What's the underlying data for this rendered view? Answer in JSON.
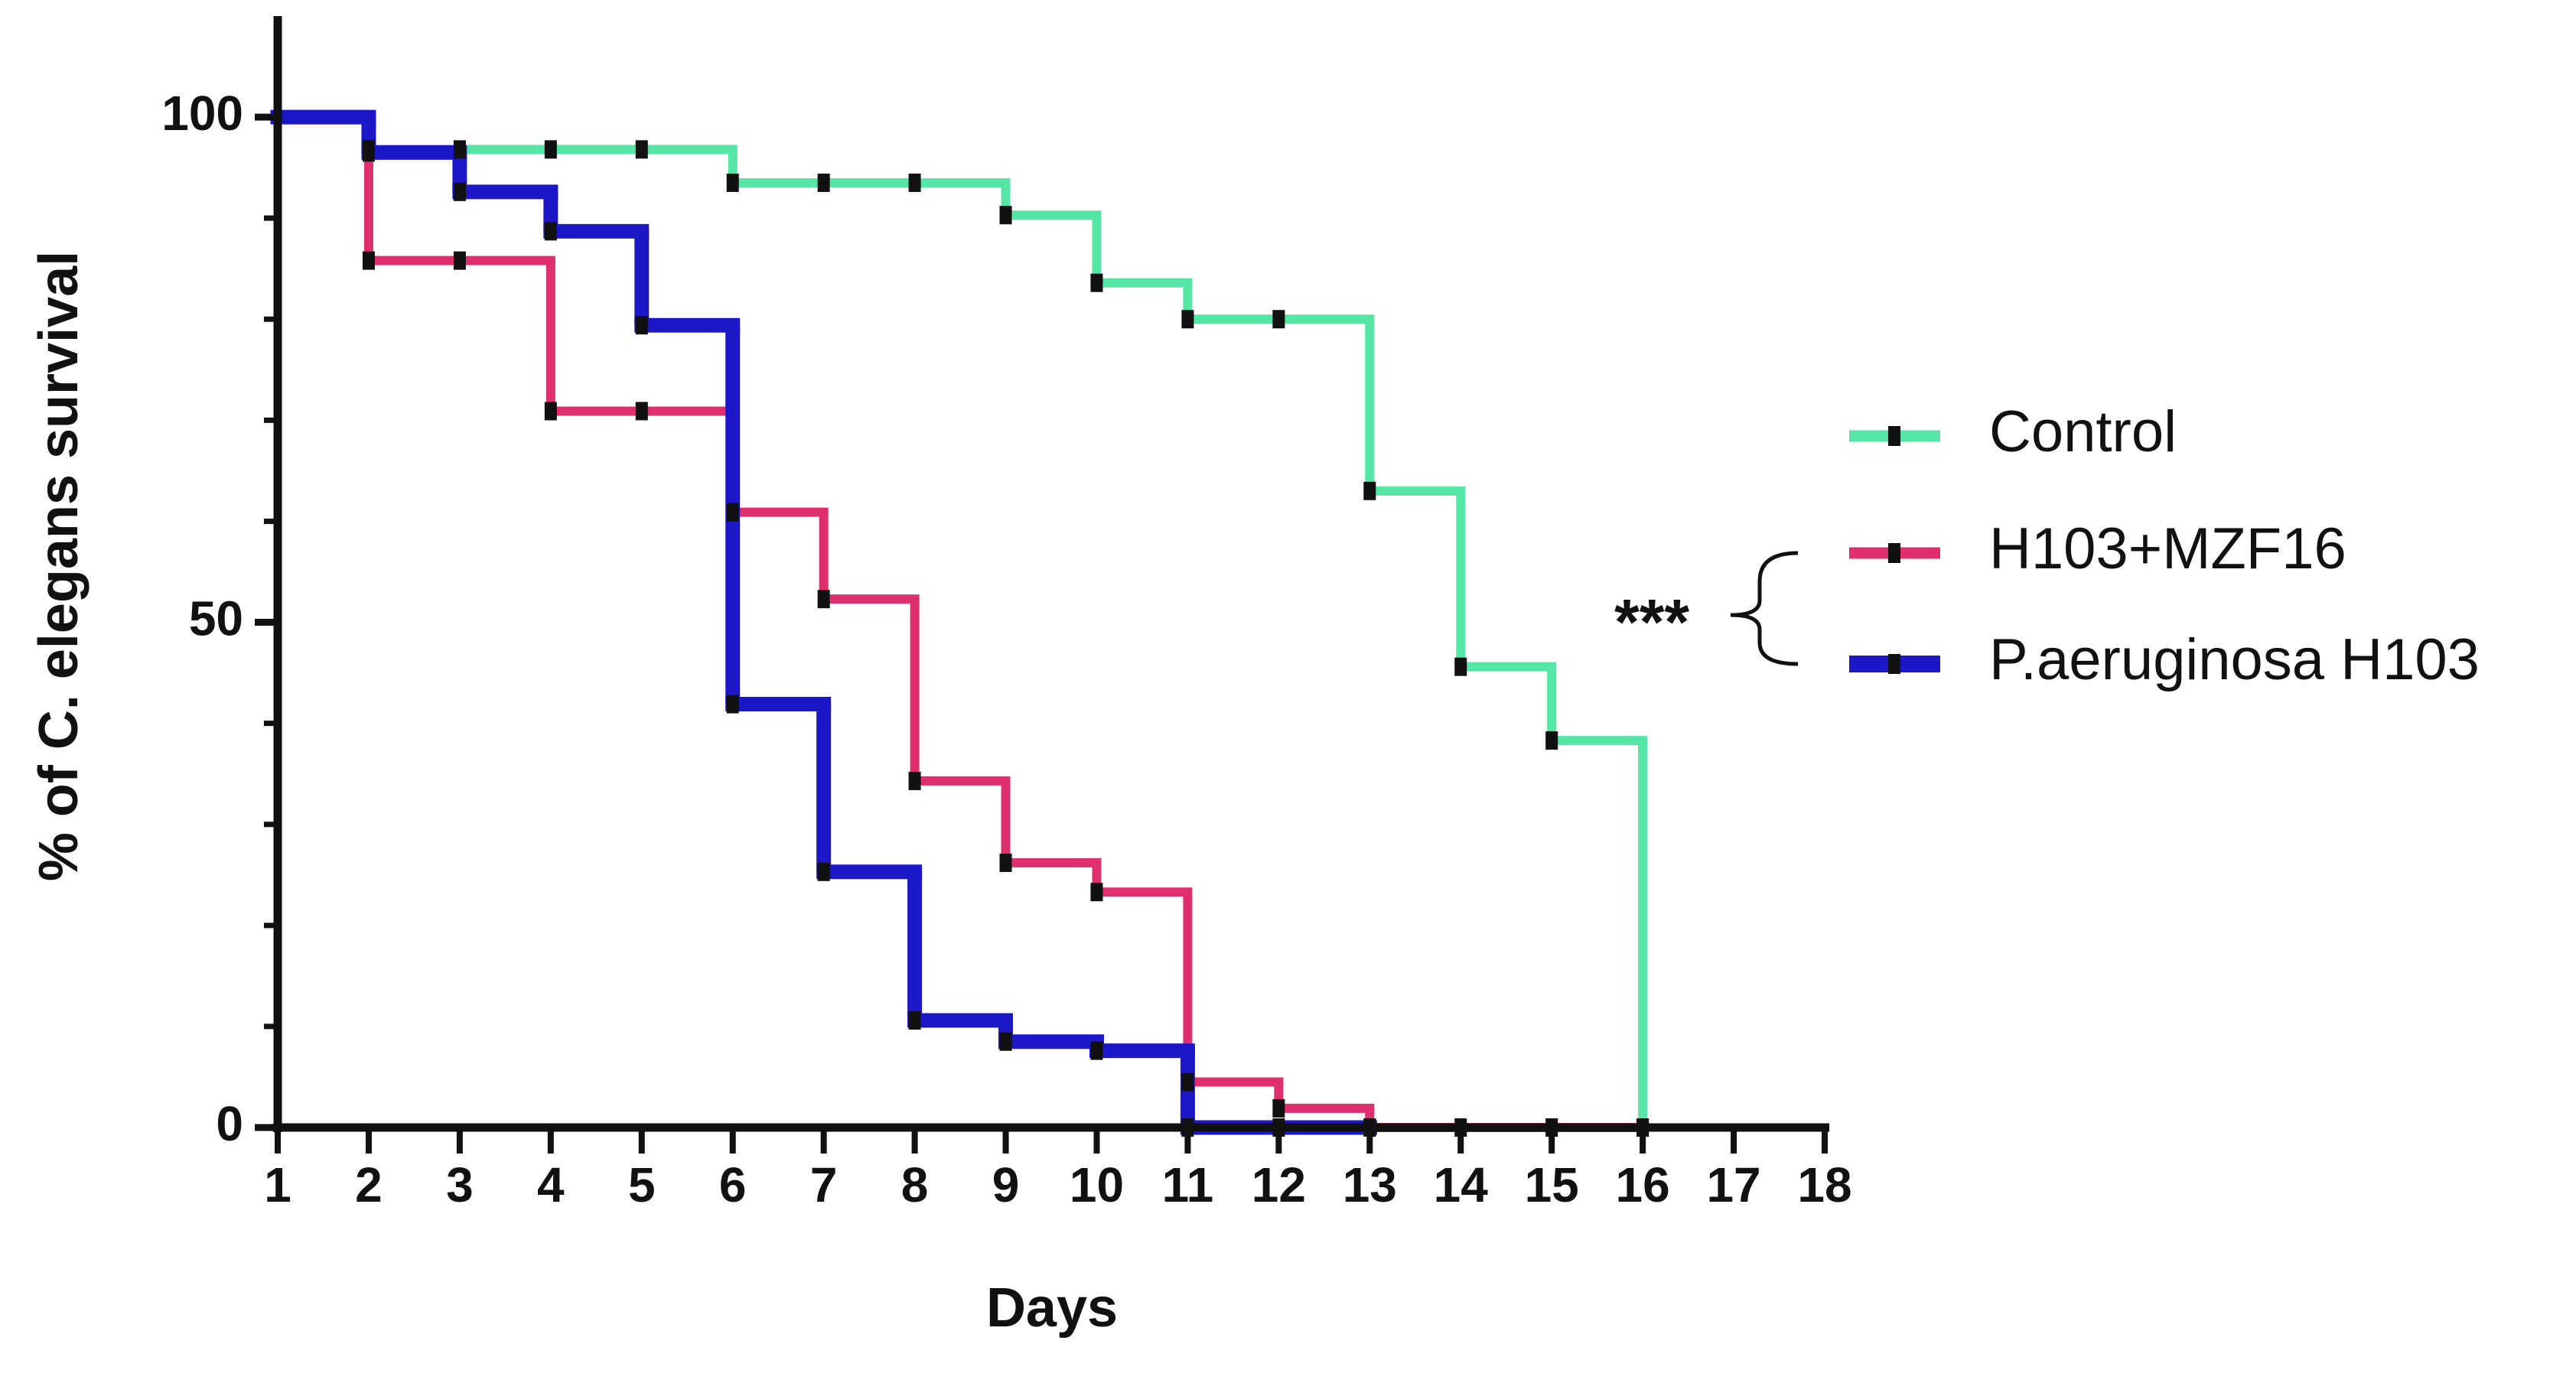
{
  "chart_data": {
    "type": "step",
    "x_label": "Days",
    "y_label": "% of C. elegans survival",
    "annotation": "***",
    "x": [
      1,
      2,
      3,
      4,
      5,
      6,
      7,
      8,
      9,
      10,
      11,
      12,
      13,
      14,
      15,
      16
    ],
    "series": [
      {
        "name": "Control",
        "color": "#55e6a5",
        "values": [
          100,
          96.8,
          96.8,
          96.8,
          96.8,
          93.5,
          93.5,
          93.5,
          90.3,
          83.6,
          80,
          80,
          63,
          45.6,
          38.3,
          0
        ]
      },
      {
        "name": "H103+MZF16",
        "color": "#df2f6e",
        "values": [
          100,
          85.8,
          85.8,
          70.9,
          70.9,
          60.9,
          52.3,
          34.3,
          26.2,
          23.3,
          4.5,
          1.9,
          0,
          0,
          0,
          0
        ]
      },
      {
        "name": "P.aeruginosa H103",
        "color": "#1c18c8",
        "values": [
          100,
          96.5,
          92.6,
          88.7,
          79.4,
          41.9,
          25.3,
          10.6,
          8.5,
          7.6,
          0,
          0,
          0,
          null,
          null,
          null
        ]
      }
    ],
    "xlim": [
      1,
      18
    ],
    "xticks": [
      1,
      2,
      3,
      4,
      5,
      6,
      7,
      8,
      9,
      10,
      11,
      12,
      13,
      14,
      15,
      16,
      17,
      18
    ],
    "ylim": [
      0,
      110
    ],
    "yticks": [
      0,
      50,
      100
    ],
    "yminorticks": [
      10,
      20,
      30,
      40,
      60,
      70,
      80,
      90
    ],
    "legend": "right"
  }
}
